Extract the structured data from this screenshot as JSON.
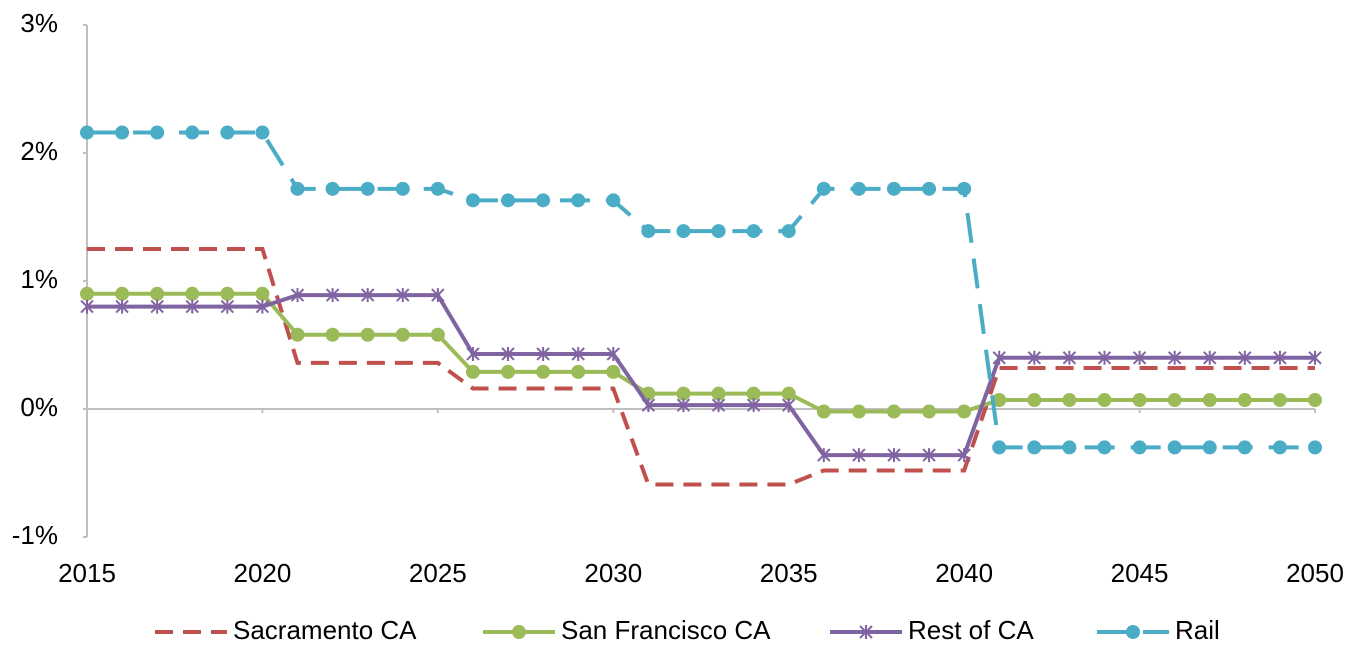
{
  "chart_data": {
    "type": "line",
    "x": [
      2015,
      2016,
      2017,
      2018,
      2019,
      2020,
      2021,
      2022,
      2023,
      2024,
      2025,
      2026,
      2027,
      2028,
      2029,
      2030,
      2031,
      2032,
      2033,
      2034,
      2035,
      2036,
      2037,
      2038,
      2039,
      2040,
      2041,
      2042,
      2043,
      2044,
      2045,
      2046,
      2047,
      2048,
      2049,
      2050
    ],
    "series": [
      {
        "name": "Sacramento CA",
        "color": "#c0504d",
        "values": [
          1.25,
          1.25,
          1.25,
          1.25,
          1.25,
          1.25,
          0.36,
          0.36,
          0.36,
          0.36,
          0.36,
          0.16,
          0.16,
          0.16,
          0.16,
          0.16,
          -0.59,
          -0.59,
          -0.59,
          -0.59,
          -0.59,
          -0.48,
          -0.48,
          -0.48,
          -0.48,
          -0.48,
          0.32,
          0.32,
          0.32,
          0.32,
          0.32,
          0.32,
          0.32,
          0.32,
          0.32,
          0.32
        ]
      },
      {
        "name": "San Francisco CA",
        "color": "#9bbb59",
        "values": [
          0.9,
          0.9,
          0.9,
          0.9,
          0.9,
          0.9,
          0.58,
          0.58,
          0.58,
          0.58,
          0.58,
          0.29,
          0.29,
          0.29,
          0.29,
          0.29,
          0.12,
          0.12,
          0.12,
          0.12,
          0.12,
          -0.02,
          -0.02,
          -0.02,
          -0.02,
          -0.02,
          0.07,
          0.07,
          0.07,
          0.07,
          0.07,
          0.07,
          0.07,
          0.07,
          0.07,
          0.07
        ]
      },
      {
        "name": "Rest of CA",
        "color": "#8064a2",
        "values": [
          0.8,
          0.8,
          0.8,
          0.8,
          0.8,
          0.8,
          0.89,
          0.89,
          0.89,
          0.89,
          0.89,
          0.43,
          0.43,
          0.43,
          0.43,
          0.43,
          0.03,
          0.03,
          0.03,
          0.03,
          0.03,
          -0.36,
          -0.36,
          -0.36,
          -0.36,
          -0.36,
          0.4,
          0.4,
          0.4,
          0.4,
          0.4,
          0.4,
          0.4,
          0.4,
          0.4,
          0.4
        ]
      },
      {
        "name": "Rail",
        "color": "#4bacc6",
        "values": [
          2.16,
          2.16,
          2.16,
          2.16,
          2.16,
          2.16,
          1.72,
          1.72,
          1.72,
          1.72,
          1.72,
          1.63,
          1.63,
          1.63,
          1.63,
          1.63,
          1.39,
          1.39,
          1.39,
          1.39,
          1.39,
          1.72,
          1.72,
          1.72,
          1.72,
          1.72,
          -0.3,
          -0.3,
          -0.3,
          -0.3,
          -0.3,
          -0.3,
          -0.3,
          -0.3,
          -0.3,
          -0.3
        ]
      }
    ],
    "xlim": [
      2015,
      2050
    ],
    "xticks": [
      2015,
      2020,
      2025,
      2030,
      2035,
      2040,
      2045,
      2050
    ],
    "ylim": [
      -1,
      3
    ],
    "yticks": [
      {
        "value": -1,
        "label": "-1%"
      },
      {
        "value": 0,
        "label": "0%"
      },
      {
        "value": 1,
        "label": "1%"
      },
      {
        "value": 2,
        "label": "2%"
      },
      {
        "value": 3,
        "label": "3%"
      }
    ],
    "grid": false,
    "legend": "bottom"
  }
}
